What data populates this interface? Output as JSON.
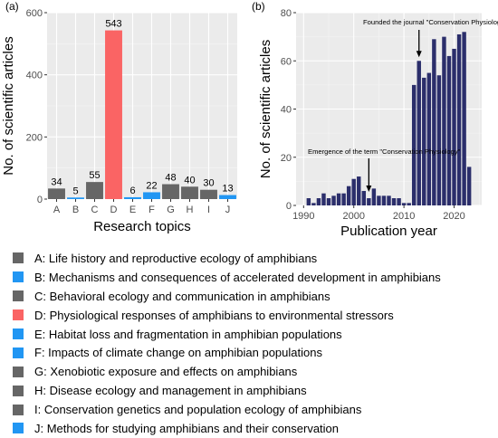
{
  "chart_data": [
    {
      "type": "bar",
      "panel_label": "(a)",
      "categories": [
        "A",
        "B",
        "C",
        "D",
        "E",
        "F",
        "G",
        "H",
        "I",
        "J"
      ],
      "values": [
        34,
        5,
        55,
        543,
        6,
        22,
        48,
        40,
        30,
        13
      ],
      "bar_colors": [
        "#666666",
        "#2196f3",
        "#666666",
        "#fa6464",
        "#2196f3",
        "#2196f3",
        "#666666",
        "#666666",
        "#666666",
        "#2196f3"
      ],
      "xlabel": "Research topics",
      "ylabel": "No. of scientific articles",
      "ylim": [
        0,
        600
      ],
      "yticks": [
        0,
        200,
        400,
        600
      ],
      "grid": true,
      "data_labels": true
    },
    {
      "type": "bar",
      "panel_label": "(b)",
      "x": [
        1991,
        1992,
        1993,
        1994,
        1995,
        1996,
        1997,
        1998,
        1999,
        2000,
        2001,
        2002,
        2003,
        2004,
        2005,
        2006,
        2007,
        2008,
        2009,
        2010,
        2011,
        2012,
        2013,
        2014,
        2015,
        2016,
        2017,
        2018,
        2019,
        2020,
        2021,
        2022,
        2023
      ],
      "values": [
        3,
        1,
        3,
        5,
        3,
        4,
        5,
        5,
        8,
        11,
        12,
        6,
        3,
        7,
        4,
        4,
        4,
        3,
        3,
        1,
        1,
        50,
        60,
        53,
        55,
        69,
        54,
        70,
        62,
        65,
        71,
        72,
        16
      ],
      "bar_color": "#2b2e6b",
      "xlabel": "Publication year",
      "ylabel": "No. of scientific articles",
      "xlim": [
        1988.5,
        2025.5
      ],
      "xticks": [
        1990,
        2000,
        2010,
        2020
      ],
      "ylim": [
        0,
        80
      ],
      "yticks": [
        0,
        20,
        40,
        60,
        80
      ],
      "grid": true,
      "annotations": [
        {
          "text": "Emergence of the term \"Conservation Physiology\"",
          "x": 2003,
          "y": 3
        },
        {
          "text": "Founded the journal \"Conservation Physiology\"",
          "x": 2013,
          "y": 60
        }
      ]
    }
  ],
  "legend": [
    {
      "color": "#666666",
      "label": "A: Life history and reproductive ecology of amphibians"
    },
    {
      "color": "#2196f3",
      "label": "B: Mechanisms and consequences of accelerated development in amphibians"
    },
    {
      "color": "#666666",
      "label": "C: Behavioral ecology and communication in amphibians"
    },
    {
      "color": "#fa6464",
      "label": "D: Physiological responses of amphibians to environmental stressors"
    },
    {
      "color": "#2196f3",
      "label": "E: Habitat loss and fragmentation in amphibian populations"
    },
    {
      "color": "#2196f3",
      "label": "F: Impacts of climate change on amphibian populations"
    },
    {
      "color": "#666666",
      "label": "G: Xenobiotic exposure and effects on amphibians"
    },
    {
      "color": "#666666",
      "label": "H: Disease ecology and management in amphibians"
    },
    {
      "color": "#666666",
      "label": "I: Conservation genetics and population ecology of amphibians"
    },
    {
      "color": "#2196f3",
      "label": "J: Methods for studying amphibians and their conservation"
    }
  ]
}
